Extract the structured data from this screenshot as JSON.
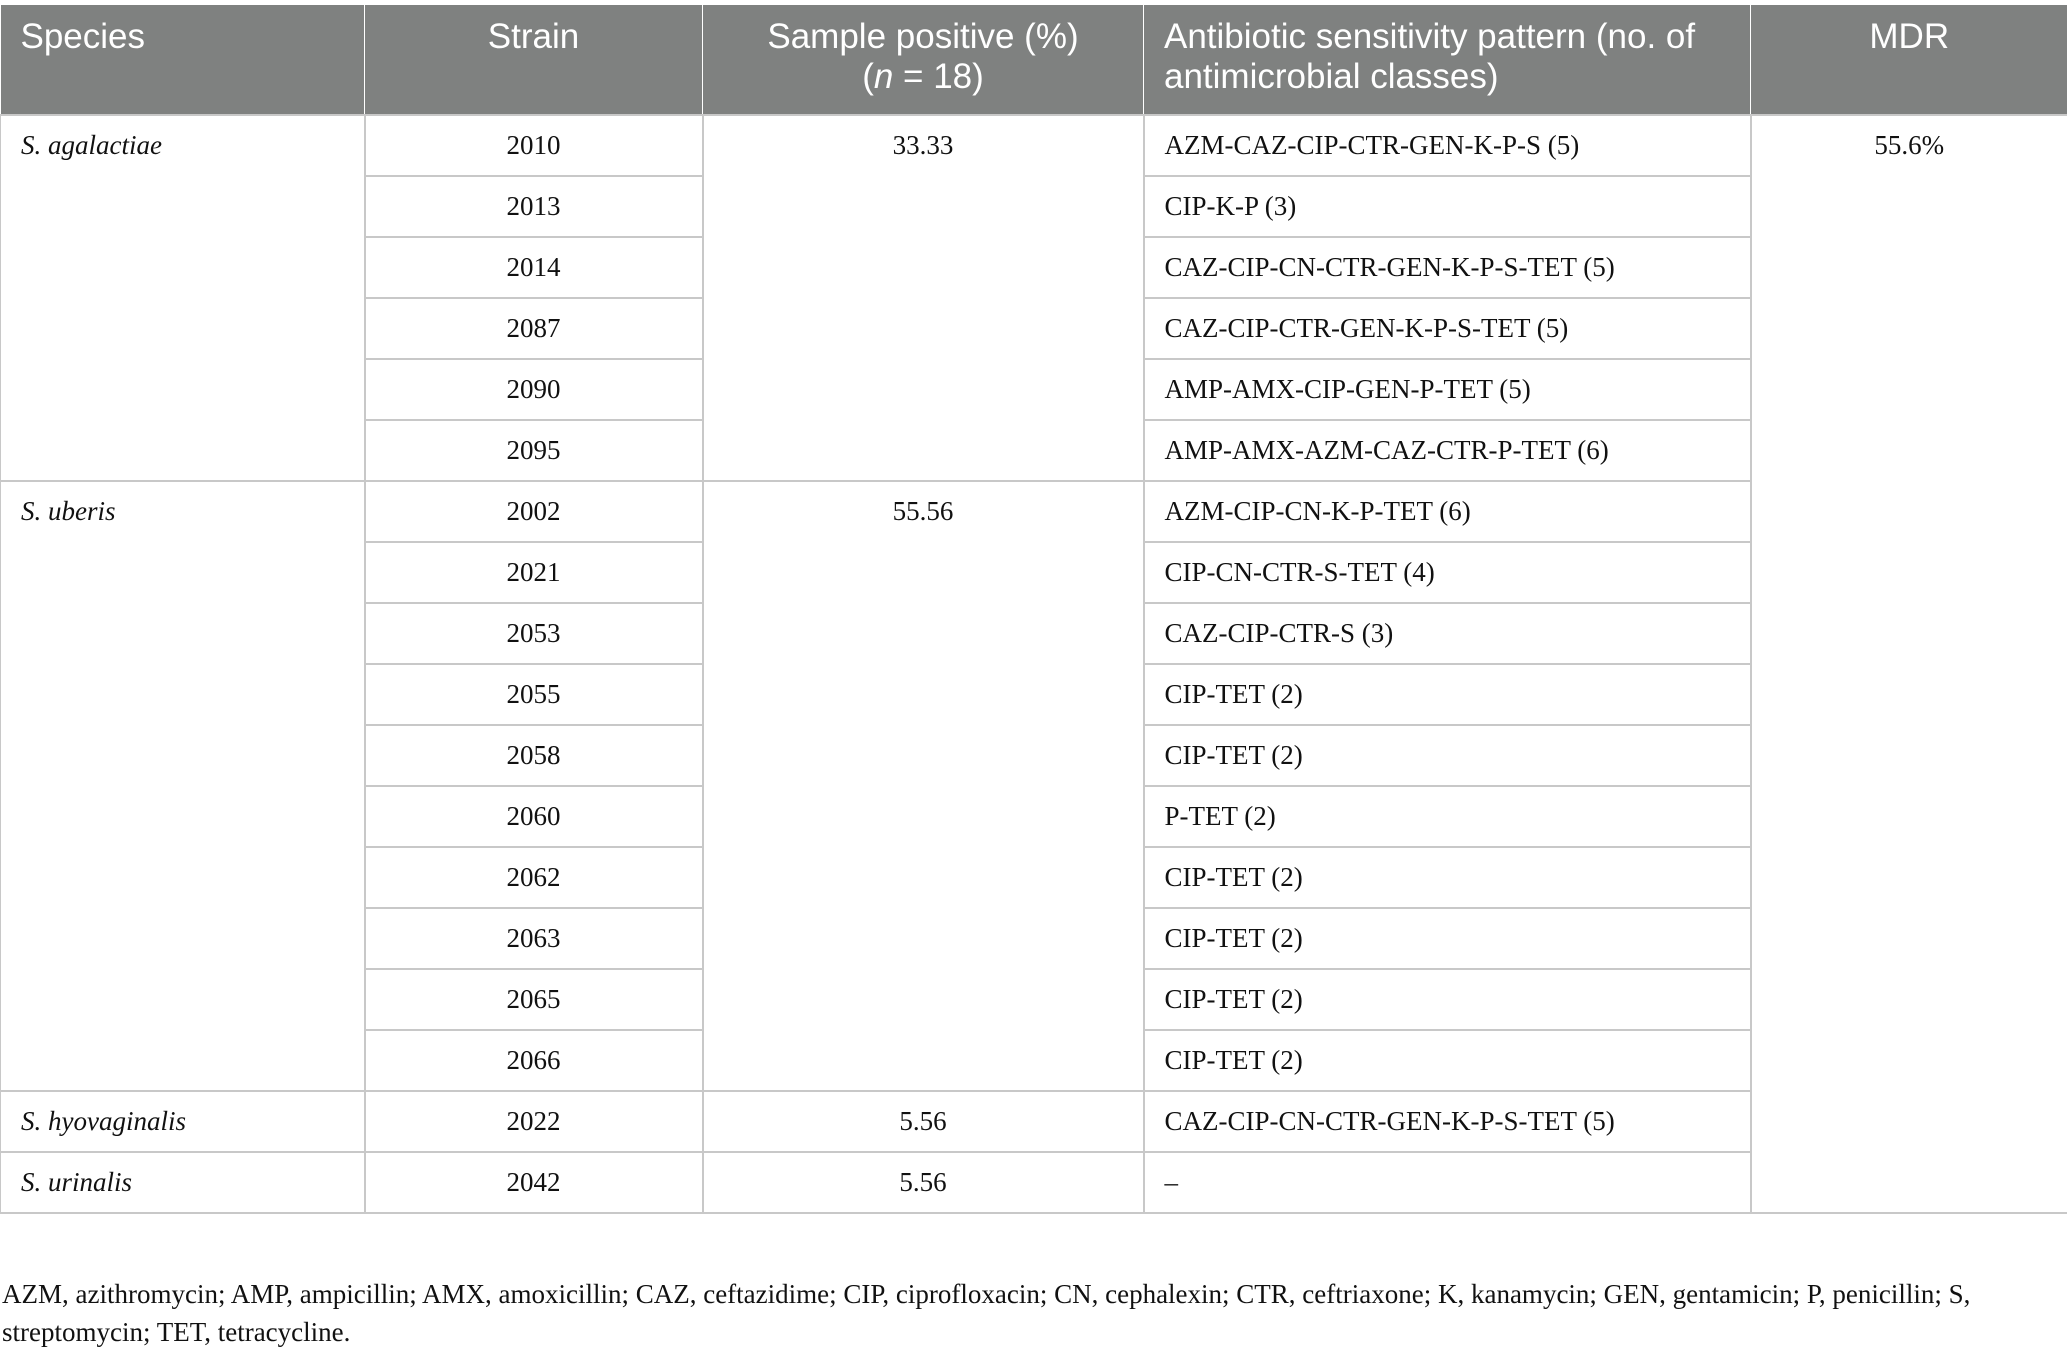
{
  "table": {
    "headers": {
      "species": "Species",
      "strain": "Strain",
      "sample_positive_line1": "Sample positive (%)",
      "sample_positive_n": "n",
      "sample_positive_rest": " = 18)",
      "sample_positive_open": "(",
      "pattern": "Antibiotic sensitivity pattern (no. of antimicrobial classes)",
      "mdr": "MDR"
    },
    "groups": [
      {
        "species": "S. agalactiae",
        "sample_positive": "33.33",
        "rows": [
          {
            "strain": "2010",
            "pattern": "AZM-CAZ-CIP-CTR-GEN-K-P-S (5)"
          },
          {
            "strain": "2013",
            "pattern": "CIP-K-P (3)"
          },
          {
            "strain": "2014",
            "pattern": "CAZ-CIP-CN-CTR-GEN-K-P-S-TET (5)"
          },
          {
            "strain": "2087",
            "pattern": "CAZ-CIP-CTR-GEN-K-P-S-TET (5)"
          },
          {
            "strain": "2090",
            "pattern": "AMP-AMX-CIP-GEN-P-TET (5)"
          },
          {
            "strain": "2095",
            "pattern": "AMP-AMX-AZM-CAZ-CTR-P-TET (6)"
          }
        ]
      },
      {
        "species": "S. uberis",
        "sample_positive": "55.56",
        "rows": [
          {
            "strain": "2002",
            "pattern": "AZM-CIP-CN-K-P-TET (6)"
          },
          {
            "strain": "2021",
            "pattern": "CIP-CN-CTR-S-TET (4)"
          },
          {
            "strain": "2053",
            "pattern": "CAZ-CIP-CTR-S (3)"
          },
          {
            "strain": "2055",
            "pattern": "CIP-TET (2)"
          },
          {
            "strain": "2058",
            "pattern": "CIP-TET (2)"
          },
          {
            "strain": "2060",
            "pattern": "P-TET (2)"
          },
          {
            "strain": "2062",
            "pattern": "CIP-TET (2)"
          },
          {
            "strain": "2063",
            "pattern": "CIP-TET (2)"
          },
          {
            "strain": "2065",
            "pattern": "CIP-TET (2)"
          },
          {
            "strain": "2066",
            "pattern": "CIP-TET (2)"
          }
        ]
      },
      {
        "species": "S. hyovaginalis",
        "sample_positive": "5.56",
        "rows": [
          {
            "strain": "2022",
            "pattern": "CAZ-CIP-CN-CTR-GEN-K-P-S-TET (5)"
          }
        ]
      },
      {
        "species": "S. urinalis",
        "sample_positive": "5.56",
        "rows": [
          {
            "strain": "2042",
            "pattern": "–"
          }
        ]
      }
    ],
    "mdr_value": "55.6%"
  },
  "footnote": "AZM, azithromycin; AMP, ampicillin; AMX, amoxicillin; CAZ, ceftazidime; CIP, ciprofloxacin; CN, cephalexin; CTR, ceftriaxone; K, kanamycin; GEN, gentamicin; P, penicillin; S, streptomycin; TET, tetracycline."
}
